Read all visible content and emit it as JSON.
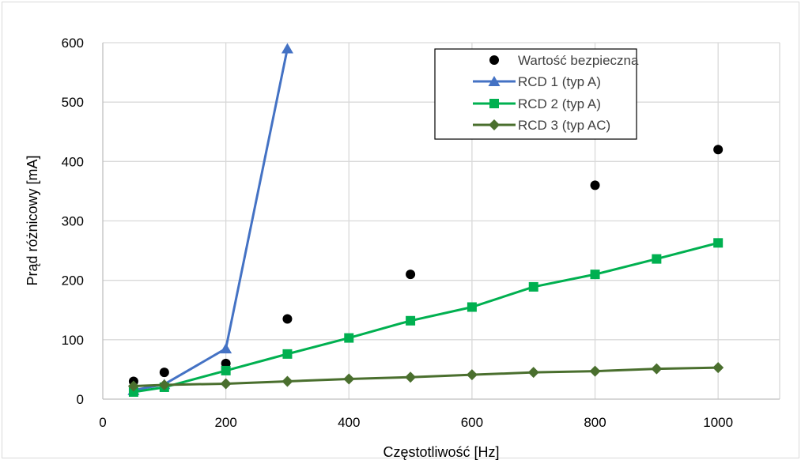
{
  "chart_data": {
    "type": "line",
    "xlabel": "Częstotliwość [Hz]",
    "ylabel": "Prąd różnicowy [mA]",
    "xlim": [
      0,
      1100
    ],
    "ylim": [
      0,
      600
    ],
    "x_ticks": [
      0,
      200,
      400,
      600,
      800,
      1000
    ],
    "y_ticks": [
      0,
      100,
      200,
      300,
      400,
      500,
      600
    ],
    "x_tick_labels": [
      "0",
      "200",
      "400",
      "600",
      "800",
      "1000"
    ],
    "y_tick_labels": [
      "0",
      "100",
      "200",
      "300",
      "400",
      "500",
      "600"
    ],
    "grid": true,
    "legend_position": "top-right",
    "series": [
      {
        "name": "Wartość bezpieczna",
        "style": "scatter",
        "marker": "circle",
        "color": "#000000",
        "x": [
          50,
          100,
          200,
          300,
          500,
          800,
          1000
        ],
        "y": [
          30,
          45,
          60,
          135,
          210,
          360,
          420
        ]
      },
      {
        "name": "RCD 1 (typ A)",
        "style": "line",
        "marker": "triangle",
        "color": "#4472C4",
        "x": [
          50,
          100,
          200,
          300
        ],
        "y": [
          15,
          25,
          85,
          590
        ]
      },
      {
        "name": "RCD 2 (typ A)",
        "style": "line",
        "marker": "square",
        "color": "#00B050",
        "x": [
          50,
          100,
          200,
          300,
          400,
          500,
          600,
          700,
          800,
          900,
          1000
        ],
        "y": [
          12,
          20,
          48,
          76,
          103,
          132,
          155,
          189,
          210,
          236,
          263
        ]
      },
      {
        "name": "RCD 3 (typ AC)",
        "style": "line",
        "marker": "diamond",
        "color": "#4A6F2E",
        "x": [
          50,
          100,
          200,
          300,
          400,
          500,
          600,
          700,
          800,
          900,
          1000
        ],
        "y": [
          22,
          24,
          26,
          30,
          34,
          37,
          41,
          45,
          47,
          51,
          53
        ]
      }
    ]
  }
}
